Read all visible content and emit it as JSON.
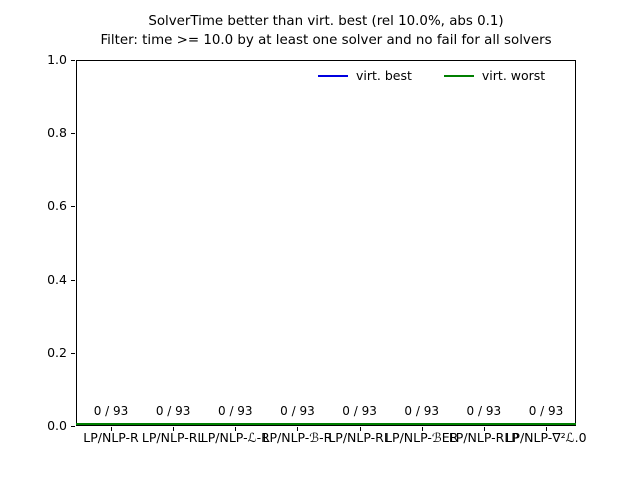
{
  "chart_data": {
    "type": "bar",
    "title": "SolverTime better than virt. best (rel 10.0%, abs 0.1)",
    "subtitle": "Filter: time >= 10.0 by at least one solver and no fail for all solvers",
    "categories": [
      "LP/NLP-R",
      "LP/NLP-RL",
      "LP/NLP-ℒ-R",
      "LP/NLP-ℬ-R",
      "LP/NLP-RL",
      "LP/NLP-ℬER",
      "LP/NLP-RLP",
      "LP/NLP-∇²ℒ.0"
    ],
    "series": [
      {
        "name": "virt. best",
        "color": "#0000e0",
        "values": [
          0,
          0,
          0,
          0,
          0,
          0,
          0,
          0
        ]
      },
      {
        "name": "virt. worst",
        "color": "#007f00",
        "values": [
          0,
          0,
          0,
          0,
          0,
          0,
          0,
          0
        ]
      }
    ],
    "bar_labels": [
      "0 / 93",
      "0 / 93",
      "0 / 93",
      "0 / 93",
      "0 / 93",
      "0 / 93",
      "0 / 93",
      "0 / 93"
    ],
    "total_instances": 93,
    "ylim": [
      0.0,
      1.0
    ],
    "yticks": [
      {
        "value": 0.0,
        "label": "0.0"
      },
      {
        "value": 0.2,
        "label": "0.2"
      },
      {
        "value": 0.4,
        "label": "0.4"
      },
      {
        "value": 0.6,
        "label": "0.6"
      },
      {
        "value": 0.8,
        "label": "0.8"
      },
      {
        "value": 1.0,
        "label": "1.0"
      }
    ],
    "legend_position": "upper center inside, horizontal, frameless",
    "grid": false
  }
}
